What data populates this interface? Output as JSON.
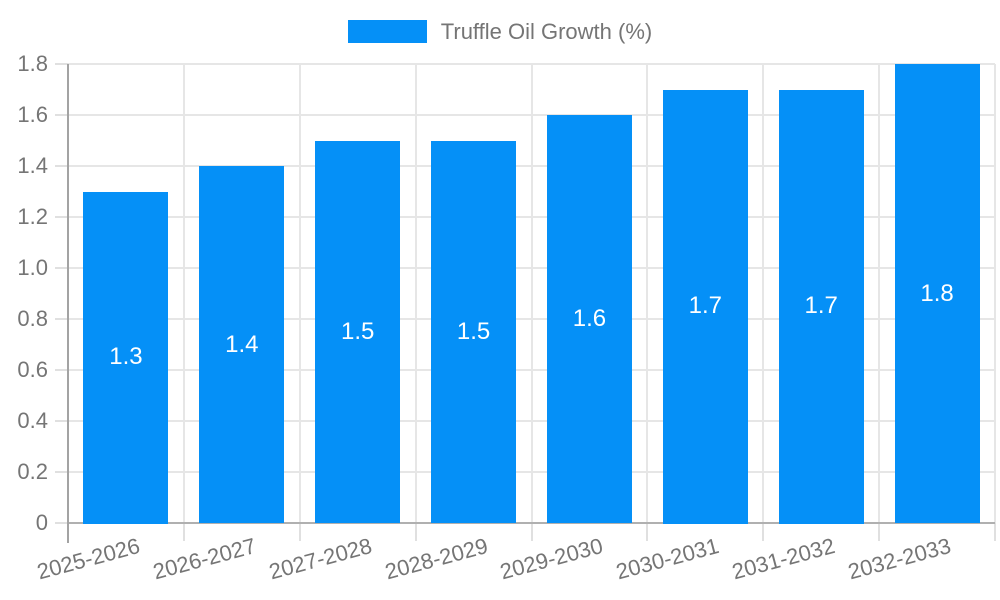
{
  "chart_data": {
    "type": "bar",
    "title": "",
    "legend_label": "Truffle Oil Growth (%)",
    "legend_position": "top",
    "categories": [
      "2025-2026",
      "2026-2027",
      "2027-2028",
      "2028-2029",
      "2029-2030",
      "2030-2031",
      "2031-2032",
      "2032-2033"
    ],
    "series": [
      {
        "name": "Truffle Oil Growth (%)",
        "values": [
          1.3,
          1.4,
          1.5,
          1.5,
          1.6,
          1.7,
          1.7,
          1.8
        ]
      }
    ],
    "bar_value_labels": [
      "1.3",
      "1.4",
      "1.5",
      "1.5",
      "1.6",
      "1.7",
      "1.7",
      "1.8"
    ],
    "xlabel": "",
    "ylabel": "",
    "ylim": [
      0,
      1.8
    ],
    "yticks": [
      {
        "value": 0.0,
        "label": "0"
      },
      {
        "value": 0.2,
        "label": "0.2"
      },
      {
        "value": 0.4,
        "label": "0.4"
      },
      {
        "value": 0.6,
        "label": "0.6"
      },
      {
        "value": 0.8,
        "label": "0.8"
      },
      {
        "value": 1.0,
        "label": "1.0"
      },
      {
        "value": 1.2,
        "label": "1.2"
      },
      {
        "value": 1.4,
        "label": "1.4"
      },
      {
        "value": 1.6,
        "label": "1.6"
      },
      {
        "value": 1.8,
        "label": "1.8"
      }
    ],
    "grid": true,
    "colors": {
      "bar": "#0590f7",
      "grid": "#e6e6e6",
      "tick_mark": "#e0e0e0",
      "y_axis": "#a3a3a3",
      "baseline": "#b0b0b0",
      "tick_text": "#757575",
      "legend_text": "#757575",
      "value_label_text": "#ffffff",
      "background": "#ffffff"
    }
  }
}
